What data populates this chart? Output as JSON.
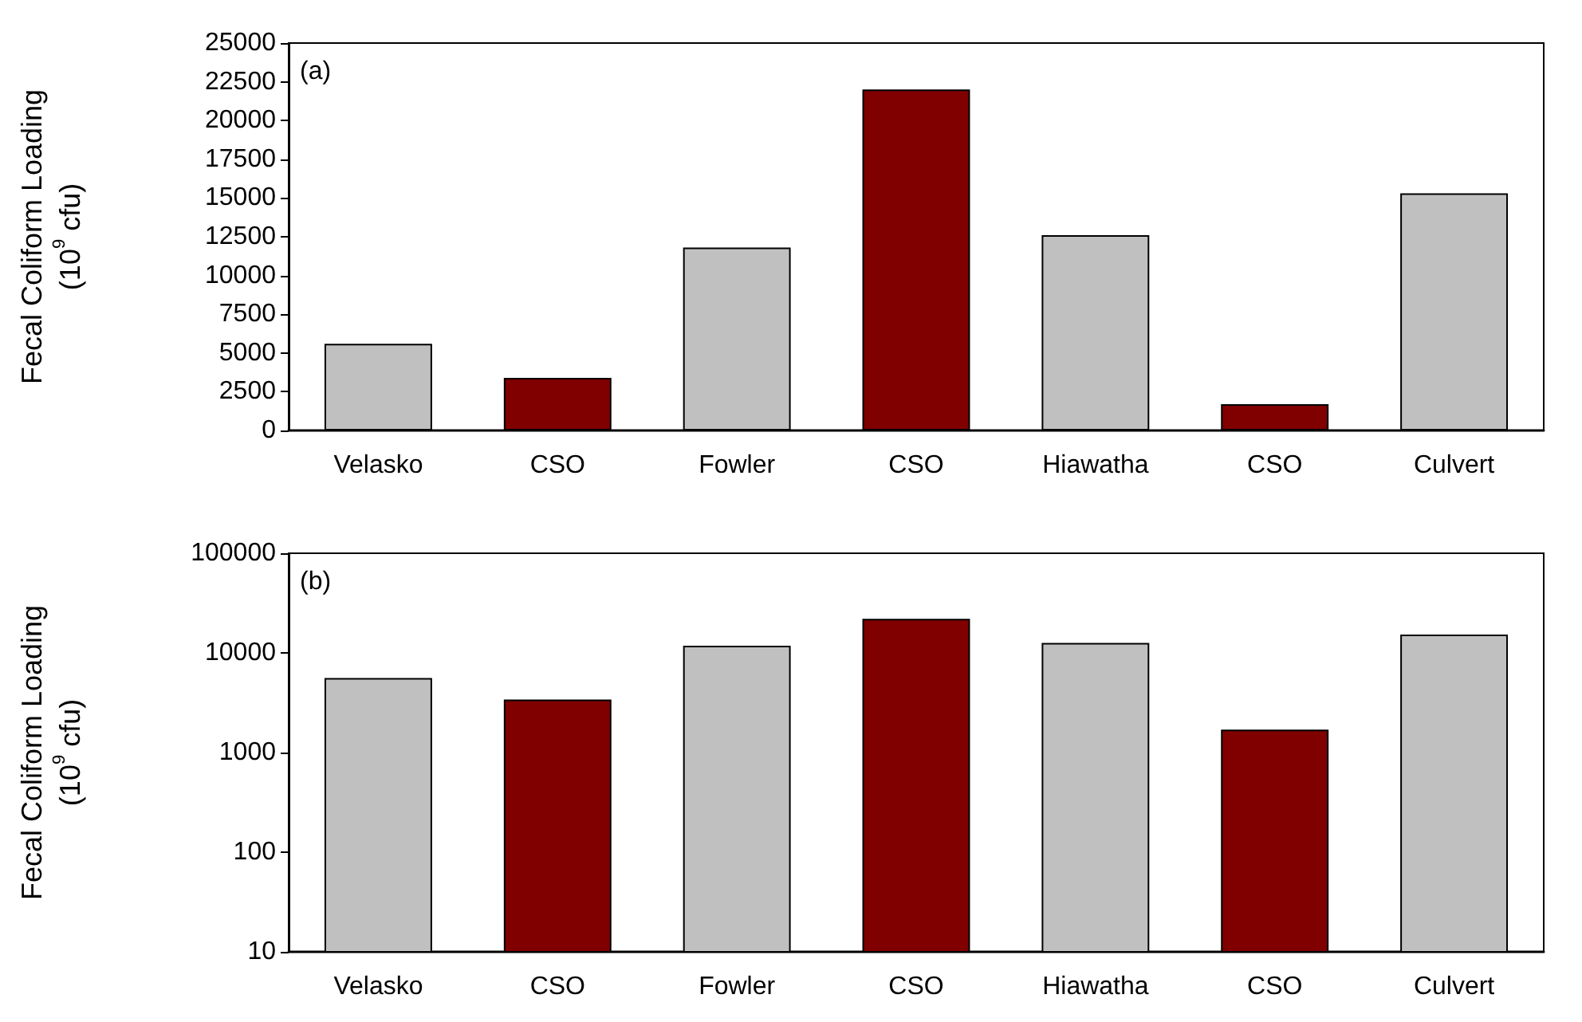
{
  "chart_data": [
    {
      "type": "bar",
      "ylabel": "Fecal Coliform Loading\n(10$^{9}$ cfu)",
      "annotations": [
        "(a)"
      ],
      "categories": [
        "Velasko",
        "CSO",
        "Fowler",
        "CSO",
        "Hiawatha",
        "CSO",
        "Culvert"
      ],
      "values": [
        5600,
        3400,
        11800,
        22000,
        12600,
        1700,
        15300
      ],
      "colors": [
        "#c0c0c0",
        "#800000",
        "#c0c0c0",
        "#800000",
        "#c0c0c0",
        "#800000",
        "#c0c0c0"
      ],
      "ylim": [
        0,
        25000
      ],
      "yticks": [
        0,
        2500,
        5000,
        7500,
        10000,
        12500,
        15000,
        17500,
        20000,
        22500,
        25000
      ],
      "grid": false
    },
    {
      "type": "bar",
      "ylabel": "Fecal Coliform Loading\n(10$^{9}$ cfu)",
      "annotations": [
        "(b)"
      ],
      "categories": [
        "Velasko",
        "CSO",
        "Fowler",
        "CSO",
        "Hiawatha",
        "CSO",
        "Culvert"
      ],
      "values": [
        5600,
        3400,
        11800,
        22000,
        12600,
        1700,
        15300
      ],
      "colors": [
        "#c0c0c0",
        "#800000",
        "#c0c0c0",
        "#800000",
        "#c0c0c0",
        "#800000",
        "#c0c0c0"
      ],
      "ylim": [
        10,
        100000
      ],
      "yticks": [
        10,
        100,
        1000,
        10000,
        100000
      ],
      "log": true,
      "grid": false
    }
  ]
}
